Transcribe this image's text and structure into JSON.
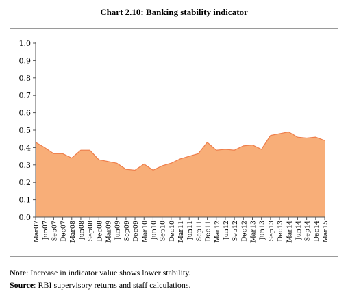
{
  "chart_data": {
    "type": "area",
    "title": "Chart 2.10: Banking stability indicator",
    "xlabel": "",
    "ylabel": "",
    "ylim": [
      0,
      1.0
    ],
    "yticks": [
      "0.0",
      "0.1",
      "0.2",
      "0.3",
      "0.4",
      "0.5",
      "0.6",
      "0.7",
      "0.8",
      "0.9",
      "1.0"
    ],
    "categories": [
      "Mar07",
      "Jun07",
      "Sep07",
      "Dec07",
      "Mar08",
      "Jun08",
      "Sep08",
      "Dec08",
      "Mar09",
      "Jun09",
      "Sep09",
      "Dec09",
      "Mar10",
      "Jun10",
      "Sep10",
      "Dec10",
      "Mar11",
      "Jun11",
      "Sep11",
      "Dec11",
      "Mar12",
      "Jun12",
      "Sep12",
      "Dec12",
      "Mar13",
      "Jun13",
      "Sep13",
      "Dec13",
      "Mar14",
      "Jun14",
      "Sep14",
      "Dec14",
      "Mar15"
    ],
    "values": [
      0.43,
      0.4,
      0.365,
      0.365,
      0.34,
      0.385,
      0.385,
      0.33,
      0.32,
      0.31,
      0.275,
      0.27,
      0.305,
      0.27,
      0.295,
      0.31,
      0.335,
      0.35,
      0.365,
      0.43,
      0.385,
      0.39,
      0.385,
      0.41,
      0.415,
      0.39,
      0.47,
      0.48,
      0.49,
      0.46,
      0.455,
      0.46,
      0.44
    ],
    "fill_color": "#F8AE78",
    "line_color": "#EE7D4A",
    "grid": false
  },
  "notes": {
    "note_label": "Note",
    "note_text": ": Increase in indicator value shows lower stability.",
    "source_label": "Source",
    "source_text": ": RBI supervisory returns and staff calculations."
  }
}
